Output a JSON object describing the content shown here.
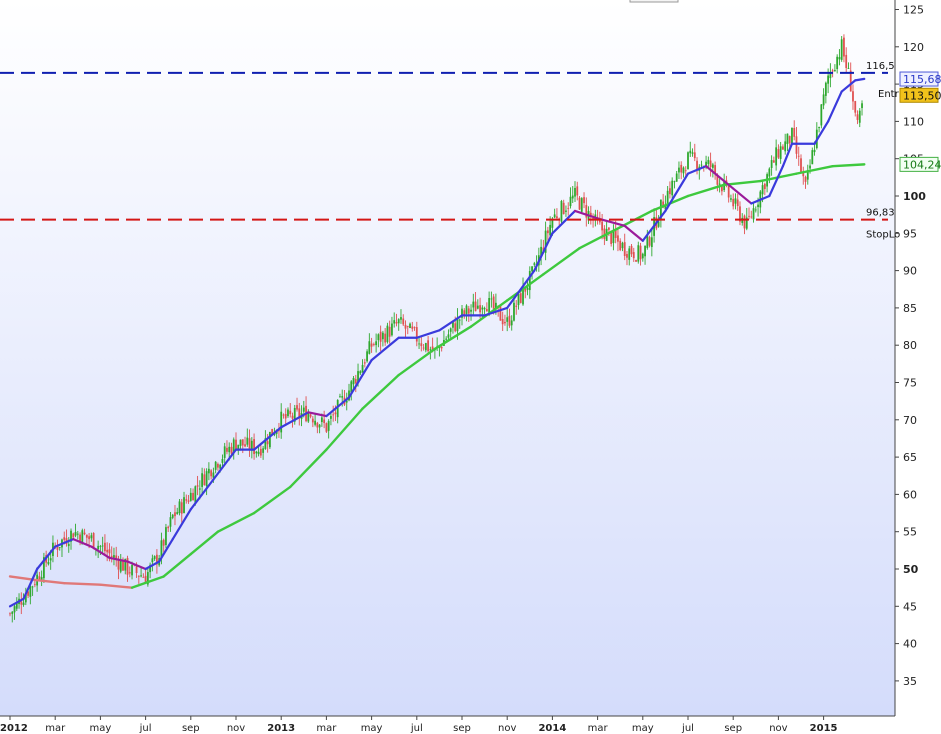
{
  "chart_data": {
    "type": "line",
    "subtype": "candlestick price chart with moving averages",
    "x_axis": {
      "tick_labels": [
        "2012",
        "mar",
        "may",
        "jul",
        "sep",
        "nov",
        "2013",
        "mar",
        "may",
        "jul",
        "sep",
        "nov",
        "2014",
        "mar",
        "may",
        "jul",
        "sep",
        "nov",
        "2015"
      ],
      "year_labels": [
        "2012",
        "2013",
        "2014",
        "2015"
      ]
    },
    "y_axis": {
      "range": [
        30,
        127
      ],
      "tick_values": [
        35,
        40,
        45,
        50,
        55,
        60,
        65,
        70,
        75,
        80,
        85,
        90,
        95,
        100,
        105,
        110,
        115,
        120,
        125
      ],
      "tick_labels": [
        "35",
        "40",
        "45",
        "50",
        "55",
        "60",
        "65",
        "70",
        "75",
        "80",
        "85",
        "90",
        "95",
        "100",
        "105",
        "110",
        "115",
        "120",
        "125"
      ],
      "bold_ticks": [
        "50",
        "100"
      ],
      "position": "right"
    },
    "grid": false,
    "background_gradient": [
      "#ffffff",
      "#d4dcfb"
    ],
    "price_series": {
      "style": "candlestick",
      "up_color": "#2ea82e",
      "down_color": "#e05050",
      "approx_path": [
        {
          "t": 0.0,
          "v": 44
        },
        {
          "t": 0.5,
          "v": 48
        },
        {
          "t": 1.0,
          "v": 53
        },
        {
          "t": 1.4,
          "v": 55
        },
        {
          "t": 1.8,
          "v": 54
        },
        {
          "t": 2.2,
          "v": 52
        },
        {
          "t": 2.6,
          "v": 50
        },
        {
          "t": 3.0,
          "v": 49
        },
        {
          "t": 3.3,
          "v": 52
        },
        {
          "t": 3.6,
          "v": 57
        },
        {
          "t": 4.0,
          "v": 60
        },
        {
          "t": 4.5,
          "v": 64
        },
        {
          "t": 5.0,
          "v": 67
        },
        {
          "t": 5.5,
          "v": 66
        },
        {
          "t": 6.0,
          "v": 70
        },
        {
          "t": 6.6,
          "v": 71
        },
        {
          "t": 7.0,
          "v": 69
        },
        {
          "t": 7.5,
          "v": 74
        },
        {
          "t": 8.0,
          "v": 80
        },
        {
          "t": 8.6,
          "v": 83
        },
        {
          "t": 9.0,
          "v": 81
        },
        {
          "t": 9.4,
          "v": 79
        },
        {
          "t": 10.0,
          "v": 84
        },
        {
          "t": 10.5,
          "v": 86
        },
        {
          "t": 11.0,
          "v": 83
        },
        {
          "t": 11.6,
          "v": 90
        },
        {
          "t": 12.0,
          "v": 97
        },
        {
          "t": 12.5,
          "v": 100
        },
        {
          "t": 13.0,
          "v": 96
        },
        {
          "t": 13.6,
          "v": 93
        },
        {
          "t": 14.0,
          "v": 92
        },
        {
          "t": 14.5,
          "v": 100
        },
        {
          "t": 15.0,
          "v": 105
        },
        {
          "t": 15.5,
          "v": 104
        },
        {
          "t": 16.0,
          "v": 99
        },
        {
          "t": 16.3,
          "v": 96
        },
        {
          "t": 16.7,
          "v": 102
        },
        {
          "t": 17.0,
          "v": 106
        },
        {
          "t": 17.3,
          "v": 108
        },
        {
          "t": 17.6,
          "v": 101
        },
        {
          "t": 17.9,
          "v": 110
        },
        {
          "t": 18.1,
          "v": 116
        },
        {
          "t": 18.4,
          "v": 120
        },
        {
          "t": 18.6,
          "v": 115
        },
        {
          "t": 18.75,
          "v": 109
        },
        {
          "t": 18.9,
          "v": 113.5
        }
      ]
    },
    "ma_short": {
      "color": "#3a3adc",
      "down_color": "#9a1a9a",
      "points": [
        {
          "t": 0.0,
          "v": 45
        },
        {
          "t": 0.3,
          "v": 46
        },
        {
          "t": 0.6,
          "v": 50
        },
        {
          "t": 1.0,
          "v": 53
        },
        {
          "t": 1.4,
          "v": 54
        },
        {
          "t": 1.8,
          "v": 53
        },
        {
          "t": 2.2,
          "v": 51.5
        },
        {
          "t": 2.6,
          "v": 51
        },
        {
          "t": 3.0,
          "v": 50
        },
        {
          "t": 3.3,
          "v": 51
        },
        {
          "t": 3.6,
          "v": 54
        },
        {
          "t": 4.0,
          "v": 58
        },
        {
          "t": 4.5,
          "v": 62
        },
        {
          "t": 5.0,
          "v": 66
        },
        {
          "t": 5.4,
          "v": 66
        },
        {
          "t": 6.0,
          "v": 69
        },
        {
          "t": 6.6,
          "v": 71
        },
        {
          "t": 7.0,
          "v": 70.5
        },
        {
          "t": 7.5,
          "v": 73
        },
        {
          "t": 8.0,
          "v": 78
        },
        {
          "t": 8.6,
          "v": 81
        },
        {
          "t": 9.0,
          "v": 81
        },
        {
          "t": 9.5,
          "v": 82
        },
        {
          "t": 10.0,
          "v": 84
        },
        {
          "t": 10.5,
          "v": 84
        },
        {
          "t": 11.0,
          "v": 85
        },
        {
          "t": 11.6,
          "v": 90
        },
        {
          "t": 12.0,
          "v": 95
        },
        {
          "t": 12.5,
          "v": 98
        },
        {
          "t": 13.0,
          "v": 97
        },
        {
          "t": 13.6,
          "v": 96
        },
        {
          "t": 14.0,
          "v": 94
        },
        {
          "t": 14.5,
          "v": 98
        },
        {
          "t": 15.0,
          "v": 103
        },
        {
          "t": 15.4,
          "v": 104
        },
        {
          "t": 16.0,
          "v": 101
        },
        {
          "t": 16.4,
          "v": 99
        },
        {
          "t": 16.8,
          "v": 100
        },
        {
          "t": 17.1,
          "v": 104
        },
        {
          "t": 17.3,
          "v": 107
        },
        {
          "t": 17.8,
          "v": 107
        },
        {
          "t": 18.1,
          "v": 110
        },
        {
          "t": 18.4,
          "v": 114
        },
        {
          "t": 18.7,
          "v": 115.5
        },
        {
          "t": 18.9,
          "v": 115.7
        }
      ]
    },
    "ma_long": {
      "color": "#3ec93e",
      "early_color": "#e07878",
      "points": [
        {
          "t": 0.0,
          "v": 49
        },
        {
          "t": 0.6,
          "v": 48.5
        },
        {
          "t": 1.2,
          "v": 48.1
        },
        {
          "t": 2.0,
          "v": 47.9
        },
        {
          "t": 2.7,
          "v": 47.5
        },
        {
          "t": 3.4,
          "v": 49
        },
        {
          "t": 4.0,
          "v": 52
        },
        {
          "t": 4.6,
          "v": 55
        },
        {
          "t": 5.4,
          "v": 57.5
        },
        {
          "t": 6.2,
          "v": 61
        },
        {
          "t": 7.0,
          "v": 66
        },
        {
          "t": 7.8,
          "v": 71.5
        },
        {
          "t": 8.6,
          "v": 76
        },
        {
          "t": 9.4,
          "v": 79.5
        },
        {
          "t": 10.2,
          "v": 82.5
        },
        {
          "t": 11.0,
          "v": 86
        },
        {
          "t": 11.8,
          "v": 89.5
        },
        {
          "t": 12.6,
          "v": 93
        },
        {
          "t": 13.4,
          "v": 95.5
        },
        {
          "t": 14.2,
          "v": 98
        },
        {
          "t": 15.0,
          "v": 100
        },
        {
          "t": 15.8,
          "v": 101.5
        },
        {
          "t": 16.6,
          "v": 102
        },
        {
          "t": 17.4,
          "v": 103
        },
        {
          "t": 18.2,
          "v": 104
        },
        {
          "t": 18.9,
          "v": 104.24
        }
      ]
    },
    "reference_lines": [
      {
        "label": "116,5",
        "value": 116.5,
        "color": "#0f1fb0",
        "style": "dashed"
      },
      {
        "label": "96,83",
        "value": 96.83,
        "color": "#d41616",
        "style": "dashed"
      }
    ],
    "annotations": {
      "entry_label": "Entr",
      "stop_label": "StopLo"
    },
    "price_badges": [
      {
        "label": "115,68",
        "value": 115.68,
        "fill": "#eef0ff",
        "stroke": "#4c5ad8",
        "text_color": "#2b3ac8"
      },
      {
        "label": "113,50",
        "value": 113.5,
        "fill": "#f1c21b",
        "stroke": "#b08a00",
        "text_color": "#111111"
      },
      {
        "label": "104,24",
        "value": 104.24,
        "fill": "#f2fff2",
        "stroke": "#43b043",
        "text_color": "#157a15"
      }
    ]
  }
}
